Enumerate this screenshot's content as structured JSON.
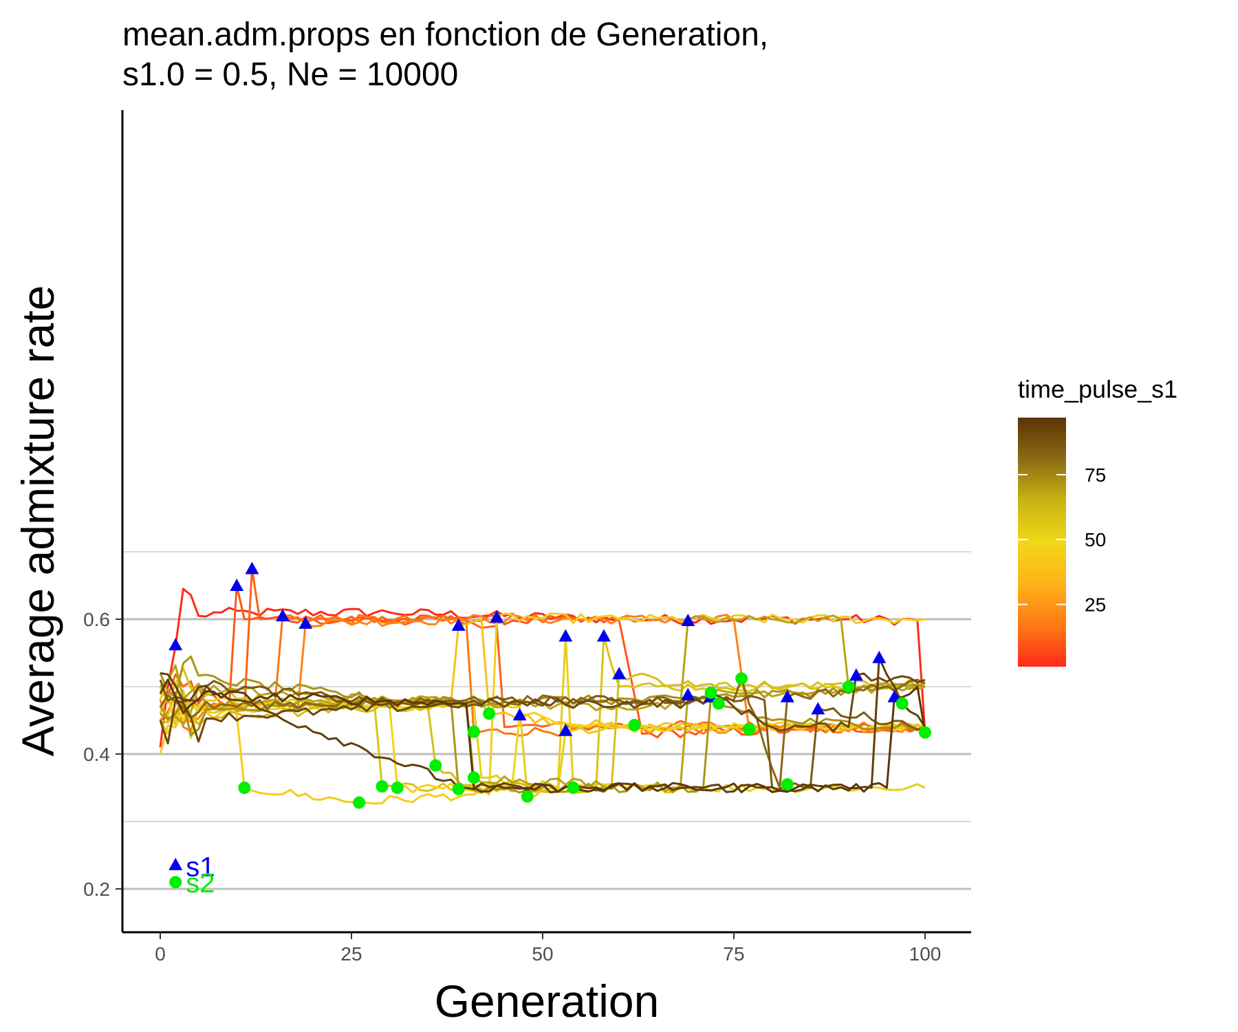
{
  "chart_data": {
    "type": "line",
    "title_lines": [
      "mean.adm.props en fonction de Generation,",
      "s1.0 = 0.5, Ne = 10000"
    ],
    "xlabel": "Generation",
    "ylabel": "Average admixture rate",
    "xlim": [
      -5,
      105
    ],
    "ylim": [
      0.18,
      0.79
    ],
    "x_ticks": [
      0,
      25,
      50,
      75,
      100
    ],
    "x_tick_labels": [
      "0",
      "25",
      "50",
      "75",
      "100"
    ],
    "y_major_ticks": [
      0.2,
      0.4,
      0.6
    ],
    "y_tick_labels": [
      "0.2",
      "0.4",
      "0.6"
    ],
    "y_minor_gridlines": [
      0.3,
      0.5,
      0.7
    ],
    "grid": "horizontal",
    "legend": {
      "title": "time_pulse_s1",
      "type": "colorbar",
      "position": "right",
      "range": [
        1,
        97
      ],
      "ticks": [
        25,
        50,
        75
      ],
      "tick_labels": [
        "25",
        "50",
        "75"
      ],
      "colors": [
        "#ff2a18",
        "#ff7a14",
        "#ffb21a",
        "#f0d818",
        "#c8b412",
        "#8c6a14",
        "#5a3408"
      ]
    },
    "annotations": [
      {
        "label": "s1",
        "marker": "triangle",
        "color": "#0000ee",
        "x": 2,
        "y": 0.236
      },
      {
        "label": "s2",
        "marker": "circle",
        "color": "#00ee00",
        "x": 2,
        "y": 0.21
      }
    ],
    "marker_s1_color": "#0000ee",
    "marker_s2_color": "#00ee00",
    "series_template": [
      {
        "time_pulse_s1": 1,
        "s1": [
          2,
          0.562
        ],
        "s2": [
          100,
          0.432
        ],
        "levels": [
          [
            0,
            0.41
          ],
          [
            1,
            0.5
          ],
          [
            2,
            0.56
          ],
          [
            3,
            0.645
          ],
          [
            5,
            0.605
          ],
          [
            8,
            0.61
          ],
          [
            12,
            0.61
          ],
          [
            30,
            0.61
          ],
          [
            60,
            0.6
          ],
          [
            90,
            0.6
          ],
          [
            99,
            0.598
          ],
          [
            100,
            0.432
          ]
        ]
      },
      {
        "time_pulse_s1": 12,
        "s1": [
          12,
          0.675
        ],
        "s2": [
          62,
          0.443
        ],
        "levels": [
          [
            0,
            0.49
          ],
          [
            3,
            0.5
          ],
          [
            8,
            0.475
          ],
          [
            11,
            0.465
          ],
          [
            12,
            0.675
          ],
          [
            13,
            0.6
          ],
          [
            20,
            0.6
          ],
          [
            40,
            0.598
          ],
          [
            44,
            0.59
          ],
          [
            45,
            0.44
          ],
          [
            62,
            0.443
          ],
          [
            100,
            0.44
          ]
        ]
      },
      {
        "time_pulse_s1": 10,
        "s1": [
          10,
          0.65
        ],
        "s2": [
          11,
          0.35
        ],
        "levels": [
          [
            0,
            0.45
          ],
          [
            5,
            0.47
          ],
          [
            9,
            0.47
          ],
          [
            10,
            0.65
          ],
          [
            11,
            0.6
          ],
          [
            20,
            0.6
          ],
          [
            60,
            0.598
          ],
          [
            63,
            0.43
          ],
          [
            100,
            0.44
          ]
        ]
      },
      {
        "time_pulse_s1": 16,
        "s1": [
          16,
          0.605
        ],
        "s2": [
          41,
          0.433
        ],
        "levels": [
          [
            0,
            0.45
          ],
          [
            5,
            0.47
          ],
          [
            15,
            0.475
          ],
          [
            16,
            0.605
          ],
          [
            20,
            0.6
          ],
          [
            40,
            0.598
          ],
          [
            41,
            0.433
          ],
          [
            100,
            0.44
          ]
        ]
      },
      {
        "time_pulse_s1": 19,
        "s1": [
          19,
          0.594
        ],
        "s2": [
          77,
          0.437
        ],
        "levels": [
          [
            0,
            0.48
          ],
          [
            10,
            0.47
          ],
          [
            18,
            0.47
          ],
          [
            19,
            0.594
          ],
          [
            40,
            0.6
          ],
          [
            75,
            0.6
          ],
          [
            77,
            0.437
          ],
          [
            100,
            0.44
          ]
        ]
      },
      {
        "time_pulse_s1": 39,
        "s1": [
          39,
          0.591
        ],
        "s2": [
          43,
          0.46
        ],
        "levels": [
          [
            0,
            0.46
          ],
          [
            20,
            0.475
          ],
          [
            38,
            0.475
          ],
          [
            39,
            0.591
          ],
          [
            42,
            0.6
          ],
          [
            43,
            0.46
          ],
          [
            60,
            0.44
          ],
          [
            100,
            0.44
          ]
        ]
      },
      {
        "time_pulse_s1": 44,
        "s1": [
          44,
          0.603
        ],
        "s2": [
          26,
          0.328
        ],
        "levels": [
          [
            0,
            0.4
          ],
          [
            5,
            0.47
          ],
          [
            10,
            0.46
          ],
          [
            11,
            0.35
          ],
          [
            26,
            0.328
          ],
          [
            40,
            0.34
          ],
          [
            43,
            0.34
          ],
          [
            44,
            0.603
          ],
          [
            60,
            0.6
          ],
          [
            100,
            0.6
          ]
        ]
      },
      {
        "time_pulse_s1": 53,
        "s1": [
          53,
          0.575
        ],
        "s2": [
          54,
          0.35
        ],
        "levels": [
          [
            0,
            0.45
          ],
          [
            20,
            0.475
          ],
          [
            41,
            0.475
          ],
          [
            42,
            0.365
          ],
          [
            52,
            0.35
          ],
          [
            53,
            0.575
          ],
          [
            54,
            0.35
          ],
          [
            100,
            0.35
          ]
        ]
      },
      {
        "time_pulse_s1": 58,
        "s1": [
          58,
          0.575
        ],
        "s2": [
          29,
          0.352
        ],
        "levels": [
          [
            0,
            0.5
          ],
          [
            20,
            0.475
          ],
          [
            28,
            0.475
          ],
          [
            29,
            0.352
          ],
          [
            57,
            0.35
          ],
          [
            58,
            0.575
          ],
          [
            60,
            0.5
          ],
          [
            100,
            0.5
          ]
        ]
      },
      {
        "time_pulse_s1": 47,
        "s1": [
          47,
          0.458
        ],
        "s2": [
          31,
          0.35
        ],
        "levels": [
          [
            0,
            0.47
          ],
          [
            20,
            0.47
          ],
          [
            30,
            0.47
          ],
          [
            31,
            0.35
          ],
          [
            46,
            0.35
          ],
          [
            47,
            0.458
          ],
          [
            60,
            0.44
          ],
          [
            100,
            0.44
          ]
        ]
      },
      {
        "time_pulse_s1": 53,
        "s1": [
          53,
          0.435
        ],
        "s2": [
          48,
          0.337
        ],
        "levels": [
          [
            0,
            0.48
          ],
          [
            30,
            0.47
          ],
          [
            47,
            0.47
          ],
          [
            48,
            0.337
          ],
          [
            52,
            0.345
          ],
          [
            53,
            0.435
          ],
          [
            60,
            0.44
          ],
          [
            100,
            0.44
          ]
        ]
      },
      {
        "time_pulse_s1": 69,
        "s1": [
          69,
          0.598
        ],
        "s2": [
          90,
          0.5
        ],
        "levels": [
          [
            0,
            0.47
          ],
          [
            30,
            0.48
          ],
          [
            60,
            0.47
          ],
          [
            68,
            0.47
          ],
          [
            69,
            0.598
          ],
          [
            80,
            0.6
          ],
          [
            89,
            0.6
          ],
          [
            90,
            0.5
          ],
          [
            100,
            0.5
          ]
        ]
      },
      {
        "time_pulse_s1": 60,
        "s1": [
          60,
          0.519
        ],
        "s2": [
          36,
          0.383
        ],
        "levels": [
          [
            0,
            0.45
          ],
          [
            30,
            0.47
          ],
          [
            35,
            0.47
          ],
          [
            36,
            0.383
          ],
          [
            40,
            0.35
          ],
          [
            59,
            0.35
          ],
          [
            60,
            0.519
          ],
          [
            70,
            0.5
          ],
          [
            100,
            0.505
          ]
        ]
      },
      {
        "time_pulse_s1": 69,
        "s1": [
          69,
          0.488
        ],
        "s2": [
          41,
          0.365
        ],
        "levels": [
          [
            0,
            0.5
          ],
          [
            30,
            0.48
          ],
          [
            40,
            0.48
          ],
          [
            41,
            0.365
          ],
          [
            68,
            0.35
          ],
          [
            69,
            0.488
          ],
          [
            100,
            0.5
          ]
        ]
      },
      {
        "time_pulse_s1": 72,
        "s1": [
          72,
          0.485
        ],
        "s2": [
          39,
          0.348
        ],
        "levels": [
          [
            0,
            0.52
          ],
          [
            30,
            0.48
          ],
          [
            38,
            0.48
          ],
          [
            39,
            0.348
          ],
          [
            71,
            0.35
          ],
          [
            72,
            0.485
          ],
          [
            100,
            0.5
          ]
        ]
      },
      {
        "time_pulse_s1": 73,
        "s1": [
          72,
          0.485
        ],
        "s2": [
          73,
          0.475
        ],
        "levels": [
          [
            0,
            0.46
          ],
          [
            40,
            0.48
          ],
          [
            70,
            0.48
          ],
          [
            72,
            0.485
          ],
          [
            73,
            0.475
          ],
          [
            80,
            0.45
          ],
          [
            100,
            0.44
          ]
        ]
      },
      {
        "time_pulse_s1": 82,
        "s1": [
          82,
          0.485
        ],
        "s2": [
          76,
          0.512
        ],
        "levels": [
          [
            0,
            0.47
          ],
          [
            40,
            0.48
          ],
          [
            70,
            0.48
          ],
          [
            75,
            0.48
          ],
          [
            76,
            0.512
          ],
          [
            81,
            0.35
          ],
          [
            82,
            0.485
          ],
          [
            100,
            0.505
          ]
        ]
      },
      {
        "time_pulse_s1": 86,
        "s1": [
          86,
          0.467
        ],
        "s2": [
          82,
          0.355
        ],
        "levels": [
          [
            0,
            0.51
          ],
          [
            30,
            0.475
          ],
          [
            60,
            0.48
          ],
          [
            79,
            0.48
          ],
          [
            80,
            0.35
          ],
          [
            82,
            0.355
          ],
          [
            85,
            0.35
          ],
          [
            86,
            0.467
          ],
          [
            100,
            0.44
          ]
        ]
      },
      {
        "time_pulse_s1": 91,
        "s1": [
          91,
          0.517
        ],
        "s2": [
          72,
          0.491
        ],
        "levels": [
          [
            0,
            0.45
          ],
          [
            40,
            0.475
          ],
          [
            71,
            0.475
          ],
          [
            72,
            0.491
          ],
          [
            80,
            0.44
          ],
          [
            90,
            0.44
          ],
          [
            91,
            0.517
          ],
          [
            100,
            0.51
          ]
        ]
      },
      {
        "time_pulse_s1": 94,
        "s1": [
          94,
          0.543
        ],
        "s2": [
          97,
          0.475
        ],
        "levels": [
          [
            0,
            0.52
          ],
          [
            10,
            0.48
          ],
          [
            40,
            0.35
          ],
          [
            93,
            0.35
          ],
          [
            94,
            0.543
          ],
          [
            96,
            0.5
          ],
          [
            97,
            0.475
          ],
          [
            100,
            0.44
          ]
        ]
      },
      {
        "time_pulse_s1": 96,
        "s1": [
          96,
          0.485
        ],
        "s2": [
          100,
          0.432
        ],
        "levels": [
          [
            0,
            0.49
          ],
          [
            40,
            0.475
          ],
          [
            41,
            0.35
          ],
          [
            95,
            0.35
          ],
          [
            96,
            0.485
          ],
          [
            99,
            0.5
          ],
          [
            100,
            0.432
          ]
        ]
      }
    ],
    "s1_points": [
      [
        2,
        0.562
      ],
      [
        10,
        0.65
      ],
      [
        12,
        0.675
      ],
      [
        16,
        0.605
      ],
      [
        19,
        0.594
      ],
      [
        39,
        0.591
      ],
      [
        44,
        0.603
      ],
      [
        47,
        0.458
      ],
      [
        53,
        0.575
      ],
      [
        53,
        0.435
      ],
      [
        58,
        0.575
      ],
      [
        60,
        0.519
      ],
      [
        69,
        0.598
      ],
      [
        69,
        0.488
      ],
      [
        72,
        0.485
      ],
      [
        82,
        0.485
      ],
      [
        86,
        0.467
      ],
      [
        91,
        0.517
      ],
      [
        94,
        0.543
      ],
      [
        96,
        0.485
      ]
    ],
    "s2_points": [
      [
        11,
        0.35
      ],
      [
        26,
        0.328
      ],
      [
        29,
        0.352
      ],
      [
        31,
        0.35
      ],
      [
        36,
        0.383
      ],
      [
        39,
        0.348
      ],
      [
        41,
        0.433
      ],
      [
        41,
        0.365
      ],
      [
        43,
        0.46
      ],
      [
        48,
        0.337
      ],
      [
        54,
        0.35
      ],
      [
        62,
        0.443
      ],
      [
        72,
        0.491
      ],
      [
        73,
        0.475
      ],
      [
        76,
        0.512
      ],
      [
        77,
        0.437
      ],
      [
        82,
        0.355
      ],
      [
        90,
        0.5
      ],
      [
        97,
        0.475
      ],
      [
        100,
        0.432
      ]
    ]
  }
}
